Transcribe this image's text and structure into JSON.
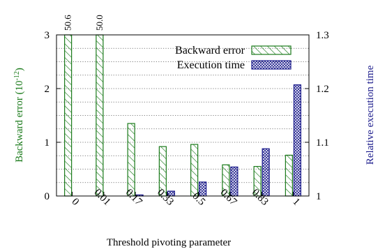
{
  "chart_data": {
    "type": "bar",
    "xlabel": "Threshold pivoting parameter",
    "categories": [
      "0",
      "0.01",
      "0.17",
      "0.33",
      "0.5",
      "0.67",
      "0.83",
      "1"
    ],
    "y_left": {
      "label": "Backward error (10",
      "label_exp": "-12",
      "label_close": ")",
      "lim": [
        0,
        3
      ],
      "ticks": [
        "0",
        "1",
        "2",
        "3"
      ]
    },
    "y_right": {
      "label": "Relative execution time",
      "lim": [
        1.0,
        1.3
      ],
      "ticks": [
        "1",
        "1.1",
        "1.2",
        "1.3"
      ]
    },
    "series": [
      {
        "name": "Backward error",
        "axis": "left",
        "color": "#1a7a1a",
        "values": [
          3,
          3,
          1.35,
          0.92,
          0.96,
          0.58,
          0.55,
          0.76
        ],
        "overflow_labels": [
          "50.6",
          "50.0",
          "",
          "",
          "",
          "",
          "",
          ""
        ]
      },
      {
        "name": "Execution time",
        "axis": "right",
        "color": "#1c1c8c",
        "values": [
          1.0,
          1.0,
          1.002,
          1.009,
          1.026,
          1.054,
          1.088,
          1.207
        ]
      }
    ],
    "grid": true,
    "legend": "top-right"
  }
}
